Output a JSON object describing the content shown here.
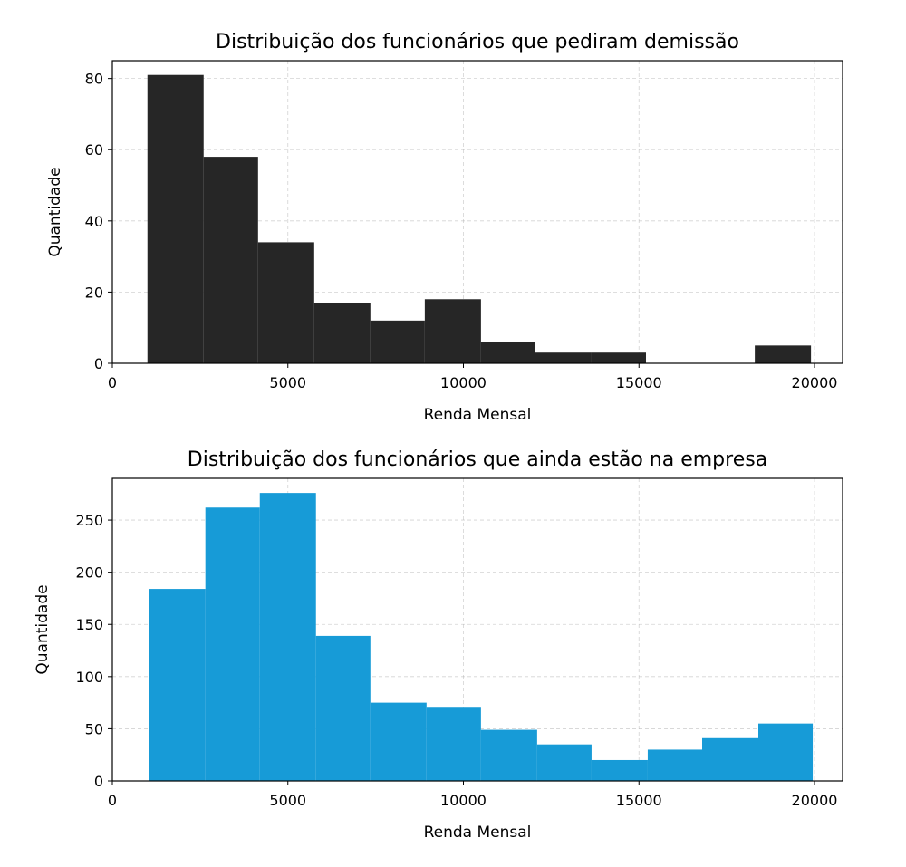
{
  "chart_data": [
    {
      "type": "bar",
      "title": "Distribuição dos funcionários que pediram demissão",
      "xlabel": "Renda Mensal",
      "ylabel": "Quantidade",
      "xlim": [
        0,
        20800
      ],
      "ylim": [
        0,
        85
      ],
      "xticks": [
        0,
        5000,
        10000,
        15000,
        20000
      ],
      "yticks": [
        0,
        20,
        40,
        60,
        80
      ],
      "grid": true,
      "color": "#262626",
      "bins": [
        {
          "x0": 1000,
          "x1": 2600,
          "value": 81
        },
        {
          "x0": 2600,
          "x1": 4150,
          "value": 58
        },
        {
          "x0": 4150,
          "x1": 5750,
          "value": 34
        },
        {
          "x0": 5750,
          "x1": 7350,
          "value": 17
        },
        {
          "x0": 7350,
          "x1": 8900,
          "value": 12
        },
        {
          "x0": 8900,
          "x1": 10500,
          "value": 18
        },
        {
          "x0": 10500,
          "x1": 12050,
          "value": 6
        },
        {
          "x0": 12050,
          "x1": 13650,
          "value": 3
        },
        {
          "x0": 13650,
          "x1": 15200,
          "value": 3
        },
        {
          "x0": 15200,
          "x1": 16750,
          "value": 0
        },
        {
          "x0": 16750,
          "x1": 18300,
          "value": 0
        },
        {
          "x0": 18300,
          "x1": 19900,
          "value": 5
        }
      ]
    },
    {
      "type": "bar",
      "title": "Distribuição dos funcionários que ainda estão na empresa",
      "xlabel": "Renda Mensal",
      "ylabel": "Quantidade",
      "xlim": [
        0,
        20800
      ],
      "ylim": [
        0,
        290
      ],
      "xticks": [
        0,
        5000,
        10000,
        15000,
        20000
      ],
      "yticks": [
        0,
        50,
        100,
        150,
        200,
        250
      ],
      "grid": true,
      "color": "#179bd7",
      "bins": [
        {
          "x0": 1050,
          "x1": 2650,
          "value": 184
        },
        {
          "x0": 2650,
          "x1": 4200,
          "value": 262
        },
        {
          "x0": 4200,
          "x1": 5800,
          "value": 276
        },
        {
          "x0": 5800,
          "x1": 7350,
          "value": 139
        },
        {
          "x0": 7350,
          "x1": 8950,
          "value": 75
        },
        {
          "x0": 8950,
          "x1": 10500,
          "value": 71
        },
        {
          "x0": 10500,
          "x1": 12100,
          "value": 49
        },
        {
          "x0": 12100,
          "x1": 13650,
          "value": 35
        },
        {
          "x0": 13650,
          "x1": 15250,
          "value": 20
        },
        {
          "x0": 15250,
          "x1": 16800,
          "value": 30
        },
        {
          "x0": 16800,
          "x1": 18400,
          "value": 41
        },
        {
          "x0": 18400,
          "x1": 19950,
          "value": 55
        }
      ]
    }
  ]
}
